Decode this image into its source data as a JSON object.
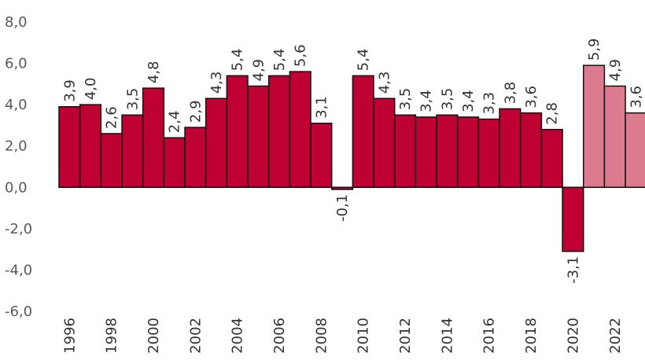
{
  "chart_data": {
    "type": "bar",
    "categories": [
      "1996",
      "1997",
      "1998",
      "1999",
      "2000",
      "2001",
      "2002",
      "2003",
      "2004",
      "2005",
      "2006",
      "2007",
      "2008",
      "2009",
      "2010",
      "2011",
      "2012",
      "2013",
      "2014",
      "2015",
      "2016",
      "2017",
      "2018",
      "2019",
      "2020",
      "2021",
      "2022",
      "2023"
    ],
    "values": [
      3.9,
      4.0,
      2.6,
      3.5,
      4.8,
      2.4,
      2.9,
      4.3,
      5.4,
      4.9,
      5.4,
      5.6,
      3.1,
      -0.1,
      5.4,
      4.3,
      3.5,
      3.4,
      3.5,
      3.4,
      3.3,
      3.8,
      3.6,
      2.8,
      -3.1,
      5.9,
      4.9,
      3.6
    ],
    "labels": [
      "3,9",
      "4,0",
      "2,6",
      "3,5",
      "4,8",
      "2,4",
      "2,9",
      "4,3",
      "5,4",
      "4,9",
      "5,4",
      "5,6",
      "3,1",
      "-0,1",
      "5,4",
      "4,3",
      "3,5",
      "3,4",
      "3,5",
      "3,4",
      "3,3",
      "3,8",
      "3,6",
      "2,8",
      "-3,1",
      "5,9",
      "4,9",
      "3,6"
    ],
    "x_tick_labels": [
      "1996",
      "1998",
      "2000",
      "2002",
      "2004",
      "2006",
      "2008",
      "2010",
      "2012",
      "2014",
      "2016",
      "2018",
      "2020",
      "2022"
    ],
    "y_ticks": [
      8,
      6,
      4,
      2,
      0,
      -2,
      -4,
      -6
    ],
    "y_tick_labels": [
      "8,0",
      "6,0",
      "4,0",
      "2,0",
      "0,0",
      "-2,0",
      "-4,0",
      "-6,0"
    ],
    "ylim": [
      -6,
      8
    ],
    "forecast_start": "2021",
    "colors": {
      "actual": "#be0032",
      "forecast": "#dc7a8f",
      "edge": "#111111",
      "axis": "#d9d9d9"
    },
    "title": "",
    "xlabel": "",
    "ylabel": ""
  }
}
